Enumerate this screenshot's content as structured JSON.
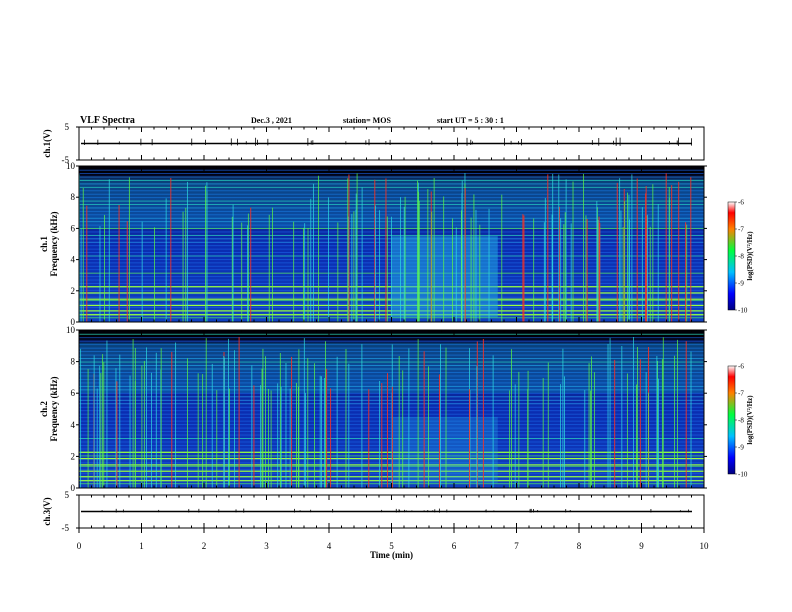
{
  "header": {
    "title": "VLF Spectra",
    "date": "Dec.3 , 2021",
    "station": "station= MOS",
    "start": "start UT = 5 : 30 : 1"
  },
  "chart_data": [
    {
      "type": "line",
      "name_id": "ch1-waveform",
      "ylabel": "ch.1(V)",
      "ylim": [
        -5,
        5
      ],
      "yticks": [
        "5",
        "-5"
      ],
      "xlim": [
        0,
        10
      ],
      "trace_level": 0
    },
    {
      "type": "heatmap",
      "name_id": "ch1-spectrogram",
      "ylabel_channel": "ch.1",
      "ylabel": "Frequency (kHz)",
      "ylim": [
        0,
        10
      ],
      "yticks": [
        "0",
        "2",
        "4",
        "6",
        "8",
        "10"
      ],
      "xlim": [
        0,
        10
      ],
      "colorbar": {
        "label": "log(PSD)(V²/Hz)",
        "range": [
          -10,
          -6
        ],
        "ticks": [
          "-6",
          "-7",
          "-8",
          "-9",
          "-10"
        ]
      }
    },
    {
      "type": "heatmap",
      "name_id": "ch2-spectrogram",
      "ylabel_channel": "ch.2",
      "ylabel": "Frequency (kHz)",
      "ylim": [
        0,
        10
      ],
      "yticks": [
        "0",
        "2",
        "4",
        "6",
        "8",
        "10"
      ],
      "xlim": [
        0,
        10
      ],
      "colorbar": {
        "label": "log(PSD)(V²/Hz)",
        "range": [
          -10,
          -6
        ],
        "ticks": [
          "-6",
          "-7",
          "-8",
          "-9",
          "-10"
        ]
      }
    },
    {
      "type": "line",
      "name_id": "ch3-waveform",
      "ylabel": "ch.3(V)",
      "ylim": [
        -5,
        5
      ],
      "yticks": [
        "5",
        "-5"
      ],
      "xlim": [
        0,
        10
      ],
      "xlabel": "Time (min)",
      "xticks": [
        "0",
        "1",
        "2",
        "3",
        "4",
        "5",
        "6",
        "7",
        "8",
        "9",
        "10"
      ],
      "trace_level": 0
    }
  ]
}
